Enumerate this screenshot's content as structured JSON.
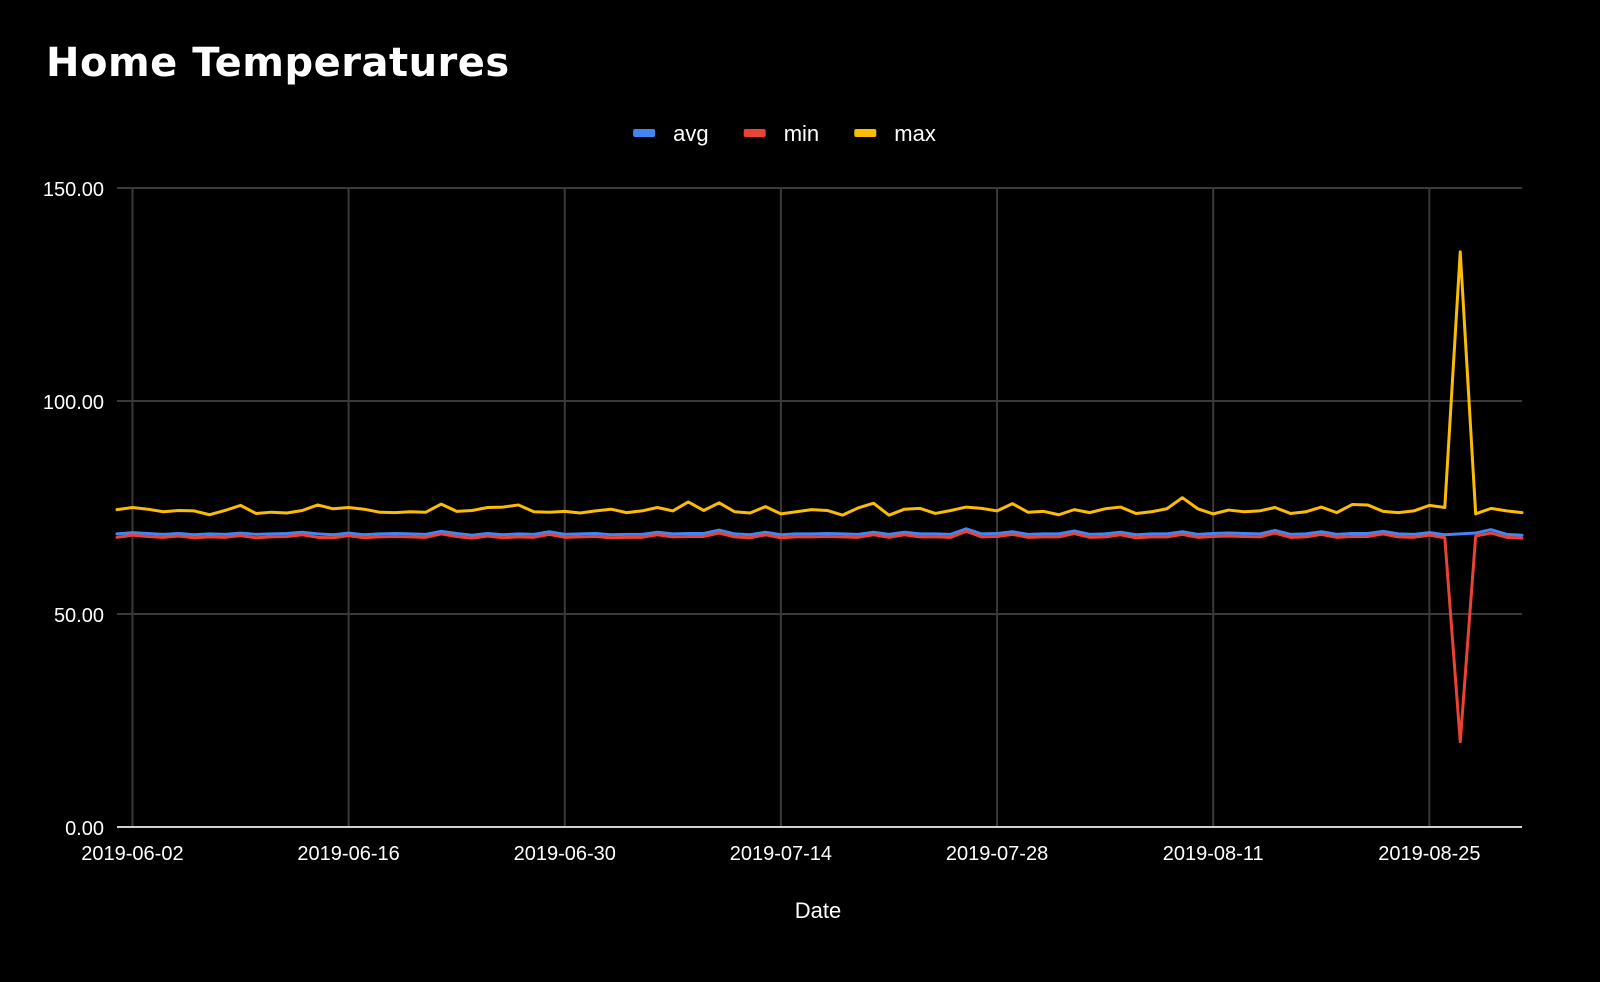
{
  "colors": {
    "background": "#000000",
    "text": "#ffffff",
    "gridline": "#3a3a3a",
    "axis_line": "#d0d0d0",
    "avg": "#4285f4",
    "min": "#ea4335",
    "max": "#fbbc04"
  },
  "chart_data": {
    "type": "line",
    "title": "Home Temperatures",
    "xlabel": "Date",
    "ylabel": "",
    "ylim": [
      0,
      150
    ],
    "yticks": [
      "0.00",
      "50.00",
      "100.00",
      "150.00"
    ],
    "yticks_values": [
      0,
      50,
      100,
      150
    ],
    "xticks": [
      "2019-06-02",
      "2019-06-16",
      "2019-06-30",
      "2019-07-14",
      "2019-07-28",
      "2019-08-11",
      "2019-08-25"
    ],
    "grid": true,
    "legend_position": "top",
    "x_start": "2019-06-01",
    "x_end": "2019-08-31",
    "x": [
      "2019-06-01",
      "2019-06-02",
      "2019-06-03",
      "2019-06-04",
      "2019-06-05",
      "2019-06-06",
      "2019-06-07",
      "2019-06-08",
      "2019-06-09",
      "2019-06-10",
      "2019-06-11",
      "2019-06-12",
      "2019-06-13",
      "2019-06-14",
      "2019-06-15",
      "2019-06-16",
      "2019-06-17",
      "2019-06-18",
      "2019-06-19",
      "2019-06-20",
      "2019-06-21",
      "2019-06-22",
      "2019-06-23",
      "2019-06-24",
      "2019-06-25",
      "2019-06-26",
      "2019-06-27",
      "2019-06-28",
      "2019-06-29",
      "2019-06-30",
      "2019-07-01",
      "2019-07-02",
      "2019-07-03",
      "2019-07-04",
      "2019-07-05",
      "2019-07-06",
      "2019-07-07",
      "2019-07-08",
      "2019-07-09",
      "2019-07-10",
      "2019-07-11",
      "2019-07-12",
      "2019-07-13",
      "2019-07-14",
      "2019-07-15",
      "2019-07-16",
      "2019-07-17",
      "2019-07-18",
      "2019-07-19",
      "2019-07-20",
      "2019-07-21",
      "2019-07-22",
      "2019-07-23",
      "2019-07-24",
      "2019-07-25",
      "2019-07-26",
      "2019-07-27",
      "2019-07-28",
      "2019-07-29",
      "2019-07-30",
      "2019-07-31",
      "2019-08-01",
      "2019-08-02",
      "2019-08-03",
      "2019-08-04",
      "2019-08-05",
      "2019-08-06",
      "2019-08-07",
      "2019-08-08",
      "2019-08-09",
      "2019-08-10",
      "2019-08-11",
      "2019-08-12",
      "2019-08-13",
      "2019-08-14",
      "2019-08-15",
      "2019-08-16",
      "2019-08-17",
      "2019-08-18",
      "2019-08-19",
      "2019-08-20",
      "2019-08-21",
      "2019-08-22",
      "2019-08-23",
      "2019-08-24",
      "2019-08-25",
      "2019-08-26",
      "2019-08-27",
      "2019-08-28",
      "2019-08-29",
      "2019-08-30",
      "2019-08-31"
    ],
    "series": [
      {
        "name": "avg",
        "color": "#4285f4",
        "values": [
          68.8,
          69.1,
          68.9,
          68.7,
          68.9,
          68.6,
          68.8,
          68.7,
          69.0,
          68.7,
          68.8,
          68.9,
          69.2,
          68.8,
          68.6,
          69.0,
          68.6,
          68.8,
          68.9,
          68.8,
          68.7,
          69.4,
          68.9,
          68.5,
          68.9,
          68.6,
          68.8,
          68.7,
          69.3,
          68.7,
          68.8,
          68.9,
          68.6,
          68.7,
          68.7,
          69.2,
          68.8,
          68.9,
          68.9,
          69.7,
          68.8,
          68.6,
          69.2,
          68.6,
          68.8,
          68.8,
          68.9,
          68.8,
          68.7,
          69.2,
          68.7,
          69.2,
          68.8,
          68.8,
          68.7,
          70.0,
          68.8,
          68.9,
          69.3,
          68.7,
          68.8,
          68.8,
          69.5,
          68.7,
          68.8,
          69.2,
          68.6,
          68.8,
          68.8,
          69.3,
          68.7,
          68.9,
          69.0,
          68.9,
          68.8,
          69.6,
          68.7,
          68.8,
          69.3,
          68.7,
          68.9,
          68.9,
          69.4,
          68.8,
          68.7,
          69.1,
          68.6,
          68.8,
          69.0,
          69.8,
          68.7,
          68.5
        ]
      },
      {
        "name": "min",
        "color": "#ea4335",
        "values": [
          68.0,
          68.5,
          68.2,
          68.0,
          68.3,
          67.9,
          68.1,
          68.0,
          68.4,
          67.9,
          68.1,
          68.2,
          68.6,
          68.0,
          67.9,
          68.4,
          67.9,
          68.1,
          68.2,
          68.1,
          68.0,
          68.8,
          68.2,
          67.8,
          68.3,
          67.9,
          68.1,
          68.0,
          68.7,
          68.0,
          68.1,
          68.2,
          67.9,
          68.0,
          68.0,
          68.6,
          68.1,
          68.2,
          68.2,
          69.0,
          68.1,
          67.9,
          68.6,
          67.9,
          68.1,
          68.1,
          68.2,
          68.1,
          68.0,
          68.6,
          68.0,
          68.6,
          68.1,
          68.1,
          68.0,
          69.4,
          68.1,
          68.2,
          68.7,
          68.0,
          68.1,
          68.1,
          68.9,
          68.0,
          68.1,
          68.6,
          67.9,
          68.1,
          68.1,
          68.7,
          68.0,
          68.2,
          68.3,
          68.2,
          68.1,
          69.0,
          68.0,
          68.1,
          68.7,
          68.0,
          68.2,
          68.2,
          68.8,
          68.1,
          68.0,
          68.5,
          67.9,
          20.0,
          68.3,
          69.0,
          68.0,
          67.8
        ]
      },
      {
        "name": "max",
        "color": "#fbbc04",
        "values": [
          74.5,
          75.0,
          74.6,
          74.0,
          74.3,
          74.2,
          73.3,
          74.3,
          75.5,
          73.6,
          73.9,
          73.7,
          74.3,
          75.6,
          74.7,
          75.0,
          74.6,
          73.9,
          73.8,
          74.0,
          73.9,
          75.8,
          74.1,
          74.3,
          75.0,
          75.1,
          75.6,
          74.0,
          73.9,
          74.1,
          73.7,
          74.2,
          74.6,
          73.8,
          74.2,
          75.0,
          74.2,
          76.3,
          74.3,
          76.1,
          74.0,
          73.7,
          75.2,
          73.5,
          74.0,
          74.5,
          74.3,
          73.2,
          74.9,
          76.0,
          73.2,
          74.6,
          74.8,
          73.6,
          74.3,
          75.1,
          74.8,
          74.2,
          75.9,
          73.9,
          74.1,
          73.3,
          74.5,
          73.8,
          74.7,
          75.1,
          73.6,
          74.0,
          74.7,
          77.3,
          74.7,
          73.5,
          74.4,
          74.0,
          74.2,
          75.0,
          73.6,
          74.0,
          75.1,
          73.8,
          75.7,
          75.6,
          74.1,
          73.8,
          74.2,
          75.5,
          75.0,
          135.0,
          73.5,
          74.8,
          74.2,
          73.8
        ]
      }
    ]
  }
}
